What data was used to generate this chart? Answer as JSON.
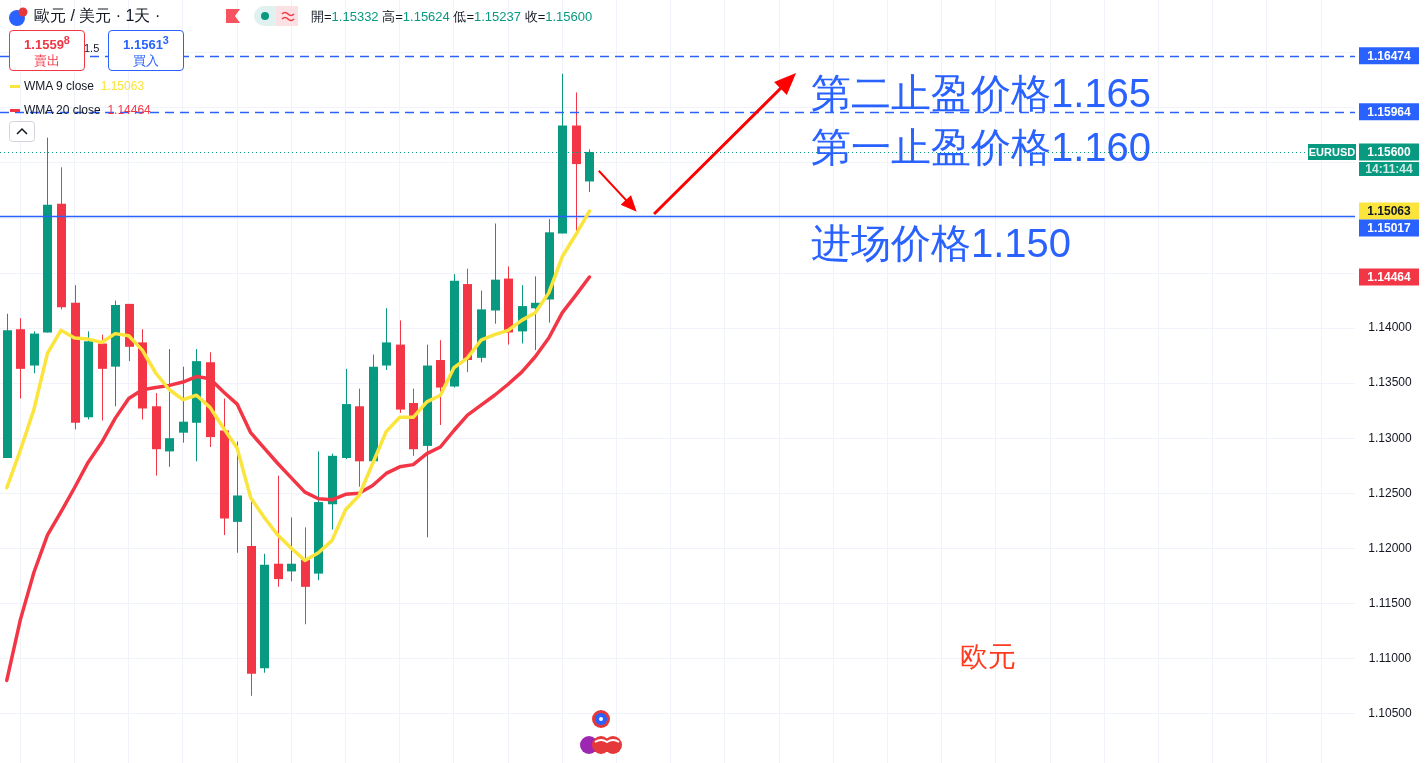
{
  "chart_data": {
    "type": "candlestick",
    "title": "歐元 / 美元 · 1天 ·",
    "subtitle": "開=1.15332 高=1.15624 低=1.15237 收=1.15600",
    "categories": [
      null,
      null,
      null,
      null,
      null,
      null,
      null,
      null,
      null,
      null,
      null,
      null,
      null,
      null,
      null,
      null,
      null,
      null,
      null,
      null,
      null,
      null,
      null,
      null,
      null,
      null,
      null,
      null,
      null,
      null,
      null,
      null,
      null,
      null,
      null,
      null,
      null,
      null,
      null,
      null,
      null,
      null,
      null,
      null,
      null,
      null,
      null,
      null,
      null,
      null,
      null,
      null,
      null,
      null,
      null,
      null,
      null,
      null,
      null,
      null,
      null,
      null,
      null,
      null,
      null,
      null,
      null,
      null,
      null,
      null,
      null,
      null,
      null,
      null,
      null,
      null,
      null,
      null,
      null,
      null,
      null,
      null,
      null,
      null,
      null,
      null,
      null,
      null,
      null,
      null,
      null,
      null,
      null,
      null,
      null,
      null,
      null,
      null,
      null,
      null
    ],
    "ohlc": [
      [
        1.1282,
        1.1413,
        1.1282,
        1.1398
      ],
      [
        1.1399,
        1.1409,
        1.1336,
        1.1363
      ],
      [
        1.1366,
        1.1397,
        1.1359,
        1.1395
      ],
      [
        1.1396,
        1.1573,
        1.1396,
        1.1512
      ],
      [
        1.1513,
        1.1546,
        1.1417,
        1.1419
      ],
      [
        1.1423,
        1.1439,
        1.1308,
        1.1314
      ],
      [
        1.1319,
        1.1397,
        1.1317,
        1.1388
      ],
      [
        1.1386,
        1.1394,
        1.1316,
        1.1363
      ],
      [
        1.1365,
        1.1425,
        1.1329,
        1.1421
      ],
      [
        1.1422,
        1.1422,
        1.137,
        1.1383
      ],
      [
        1.1387,
        1.1399,
        1.1317,
        1.1327
      ],
      [
        1.1329,
        1.1341,
        1.1266,
        1.129
      ],
      [
        1.1288,
        1.1381,
        1.1274,
        1.13
      ],
      [
        1.1305,
        1.1365,
        1.1296,
        1.1315
      ],
      [
        1.1314,
        1.1381,
        1.1279,
        1.137
      ],
      [
        1.1369,
        1.1378,
        1.1292,
        1.1301
      ],
      [
        1.1307,
        1.1336,
        1.1212,
        1.1227
      ],
      [
        1.1224,
        1.1297,
        1.1196,
        1.1248
      ],
      [
        1.1202,
        1.1243,
        1.1066,
        1.1086
      ],
      [
        1.1091,
        1.1195,
        1.1087,
        1.1185
      ],
      [
        1.1186,
        1.1266,
        1.1165,
        1.1172
      ],
      [
        1.1179,
        1.1228,
        1.117,
        1.1186
      ],
      [
        1.119,
        1.1219,
        1.1131,
        1.1165
      ],
      [
        1.1177,
        1.1288,
        1.1171,
        1.1242
      ],
      [
        1.124,
        1.1286,
        1.1217,
        1.1284
      ],
      [
        1.1282,
        1.1363,
        1.1281,
        1.1331
      ],
      [
        1.1329,
        1.1345,
        1.1256,
        1.1279
      ],
      [
        1.1279,
        1.1376,
        1.1279,
        1.1365
      ],
      [
        1.1366,
        1.1418,
        1.1362,
        1.1387
      ],
      [
        1.1385,
        1.1407,
        1.1323,
        1.1326
      ],
      [
        1.1332,
        1.1345,
        1.1284,
        1.129
      ],
      [
        1.1293,
        1.1385,
        1.121,
        1.1366
      ],
      [
        1.1371,
        1.1389,
        1.1312,
        1.1346
      ],
      [
        1.1347,
        1.1449,
        1.1346,
        1.1443
      ],
      [
        1.144,
        1.1454,
        1.136,
        1.1371
      ],
      [
        1.1373,
        1.1434,
        1.1369,
        1.1417
      ],
      [
        1.1416,
        1.1495,
        1.1404,
        1.1444
      ],
      [
        1.1445,
        1.1456,
        1.1385,
        1.1396
      ],
      [
        1.1397,
        1.1439,
        1.1386,
        1.142
      ],
      [
        1.1418,
        1.1447,
        1.138,
        1.1423
      ],
      [
        1.1426,
        1.1499,
        1.1405,
        1.1487
      ],
      [
        1.1486,
        1.1631,
        1.1486,
        1.1584
      ],
      [
        1.1584,
        1.1614,
        1.1488,
        1.1549
      ],
      [
        1.15332,
        1.15624,
        1.15237,
        1.156
      ],
      null,
      null,
      null,
      null,
      null,
      null,
      null,
      null,
      null,
      null,
      null,
      null,
      null,
      null,
      null,
      null,
      null,
      null,
      null,
      null,
      null,
      null,
      null,
      null,
      null,
      null,
      null,
      null,
      null,
      null,
      null,
      null,
      null,
      null,
      null,
      null,
      null,
      null,
      null,
      null,
      null,
      null,
      null,
      null,
      null,
      null,
      null,
      null,
      null,
      null,
      null,
      null,
      null,
      null,
      null,
      null
    ],
    "series": [
      {
        "name": "WMA 9 close",
        "type": "line",
        "color": "#fbe43c",
        "values": [
          1.1255,
          1.1289,
          1.1326,
          1.1377,
          1.1398,
          1.1391,
          1.139,
          1.1387,
          1.1395,
          1.1393,
          1.138,
          1.1359,
          1.1344,
          1.1335,
          1.1339,
          1.1328,
          1.1309,
          1.1291,
          1.1246,
          1.1228,
          1.1212,
          1.12,
          1.1189,
          1.1196,
          1.1207,
          1.1235,
          1.1248,
          1.1277,
          1.1306,
          1.1319,
          1.1319,
          1.1333,
          1.1339,
          1.1364,
          1.1373,
          1.1389,
          1.1394,
          1.1398,
          1.1407,
          1.1414,
          1.1432,
          1.1465,
          1.1485,
          1.15063,
          null,
          null,
          null,
          null,
          null,
          null,
          null,
          null,
          null,
          null,
          null,
          null,
          null,
          null,
          null,
          null,
          null,
          null,
          null,
          null,
          null,
          null,
          null,
          null,
          null,
          null,
          null,
          null,
          null,
          null,
          null,
          null,
          null,
          null,
          null,
          null,
          null,
          null,
          null,
          null,
          null,
          null,
          null,
          null,
          null,
          null,
          null,
          null,
          null,
          null,
          null,
          null,
          null,
          null,
          null,
          null
        ]
      },
      {
        "name": "WMA 20 close",
        "type": "line",
        "color": "#f23645",
        "values": [
          1.108,
          1.1135,
          1.1178,
          1.1212,
          1.1233,
          1.1255,
          1.1278,
          1.1296,
          1.1318,
          1.1336,
          1.1344,
          1.1346,
          1.1348,
          1.1351,
          1.1356,
          1.1354,
          1.1342,
          1.1331,
          1.1305,
          1.1291,
          1.1277,
          1.1264,
          1.1251,
          1.1245,
          1.1244,
          1.1249,
          1.125,
          1.1257,
          1.1268,
          1.1274,
          1.1276,
          1.1286,
          1.1292,
          1.1307,
          1.1321,
          1.133,
          1.1339,
          1.1349,
          1.136,
          1.1374,
          1.1391,
          1.1414,
          1.143,
          1.14464,
          null,
          null,
          null,
          null,
          null,
          null,
          null,
          null,
          null,
          null,
          null,
          null,
          null,
          null,
          null,
          null,
          null,
          null,
          null,
          null,
          null,
          null,
          null,
          null,
          null,
          null,
          null,
          null,
          null,
          null,
          null,
          null,
          null,
          null,
          null,
          null,
          null,
          null,
          null,
          null,
          null,
          null,
          null,
          null,
          null,
          null,
          null,
          null,
          null,
          null,
          null,
          null,
          null,
          null,
          null,
          null
        ]
      }
    ],
    "ylim": [
      1.1005,
      1.1698
    ],
    "yticks": [
      {
        "value": 1.105,
        "label": "1.10500"
      },
      {
        "value": 1.11,
        "label": "1.11000"
      },
      {
        "value": 1.115,
        "label": "1.11500"
      },
      {
        "value": 1.12,
        "label": "1.12000"
      },
      {
        "value": 1.125,
        "label": "1.12500"
      },
      {
        "value": 1.13,
        "label": "1.13000"
      },
      {
        "value": 1.135,
        "label": "1.13500"
      },
      {
        "value": 1.14,
        "label": "1.14000"
      },
      {
        "value": 1.145,
        "label": null
      },
      {
        "value": 1.15,
        "label": null
      },
      {
        "value": 1.155,
        "label": null
      },
      {
        "value": 1.16,
        "label": null
      },
      {
        "value": 1.165,
        "label": null
      }
    ],
    "ref_lines": [
      {
        "axis": "y",
        "value": 1.16474,
        "label": "1.16474",
        "color": "#2962ff",
        "line_style": "dashed"
      },
      {
        "axis": "y",
        "value": 1.15964,
        "label": "1.15964",
        "color": "#2962ff",
        "line_style": "dashed"
      },
      {
        "axis": "y",
        "value": 1.156,
        "label": "1.15600",
        "color": "#089981",
        "line_style": "dotted"
      },
      {
        "axis": "y",
        "value": 1.15017,
        "label": "1.15017",
        "color": "#2962ff",
        "line_style": "solid"
      }
    ],
    "annotations": [
      "1.1559$^{8}$",
      "賣出",
      "1.5",
      "1.1561$^{3}$",
      "買入",
      "第二止盈价格1.165",
      "第一止盈价格1.160",
      "进场价格1.150",
      "欧元",
      "EURUSD",
      "14:11:44",
      "1.15063",
      "1.14464"
    ],
    "grid": true,
    "legend": "top left",
    "marker": "none",
    "line_style": "solid"
  }
}
